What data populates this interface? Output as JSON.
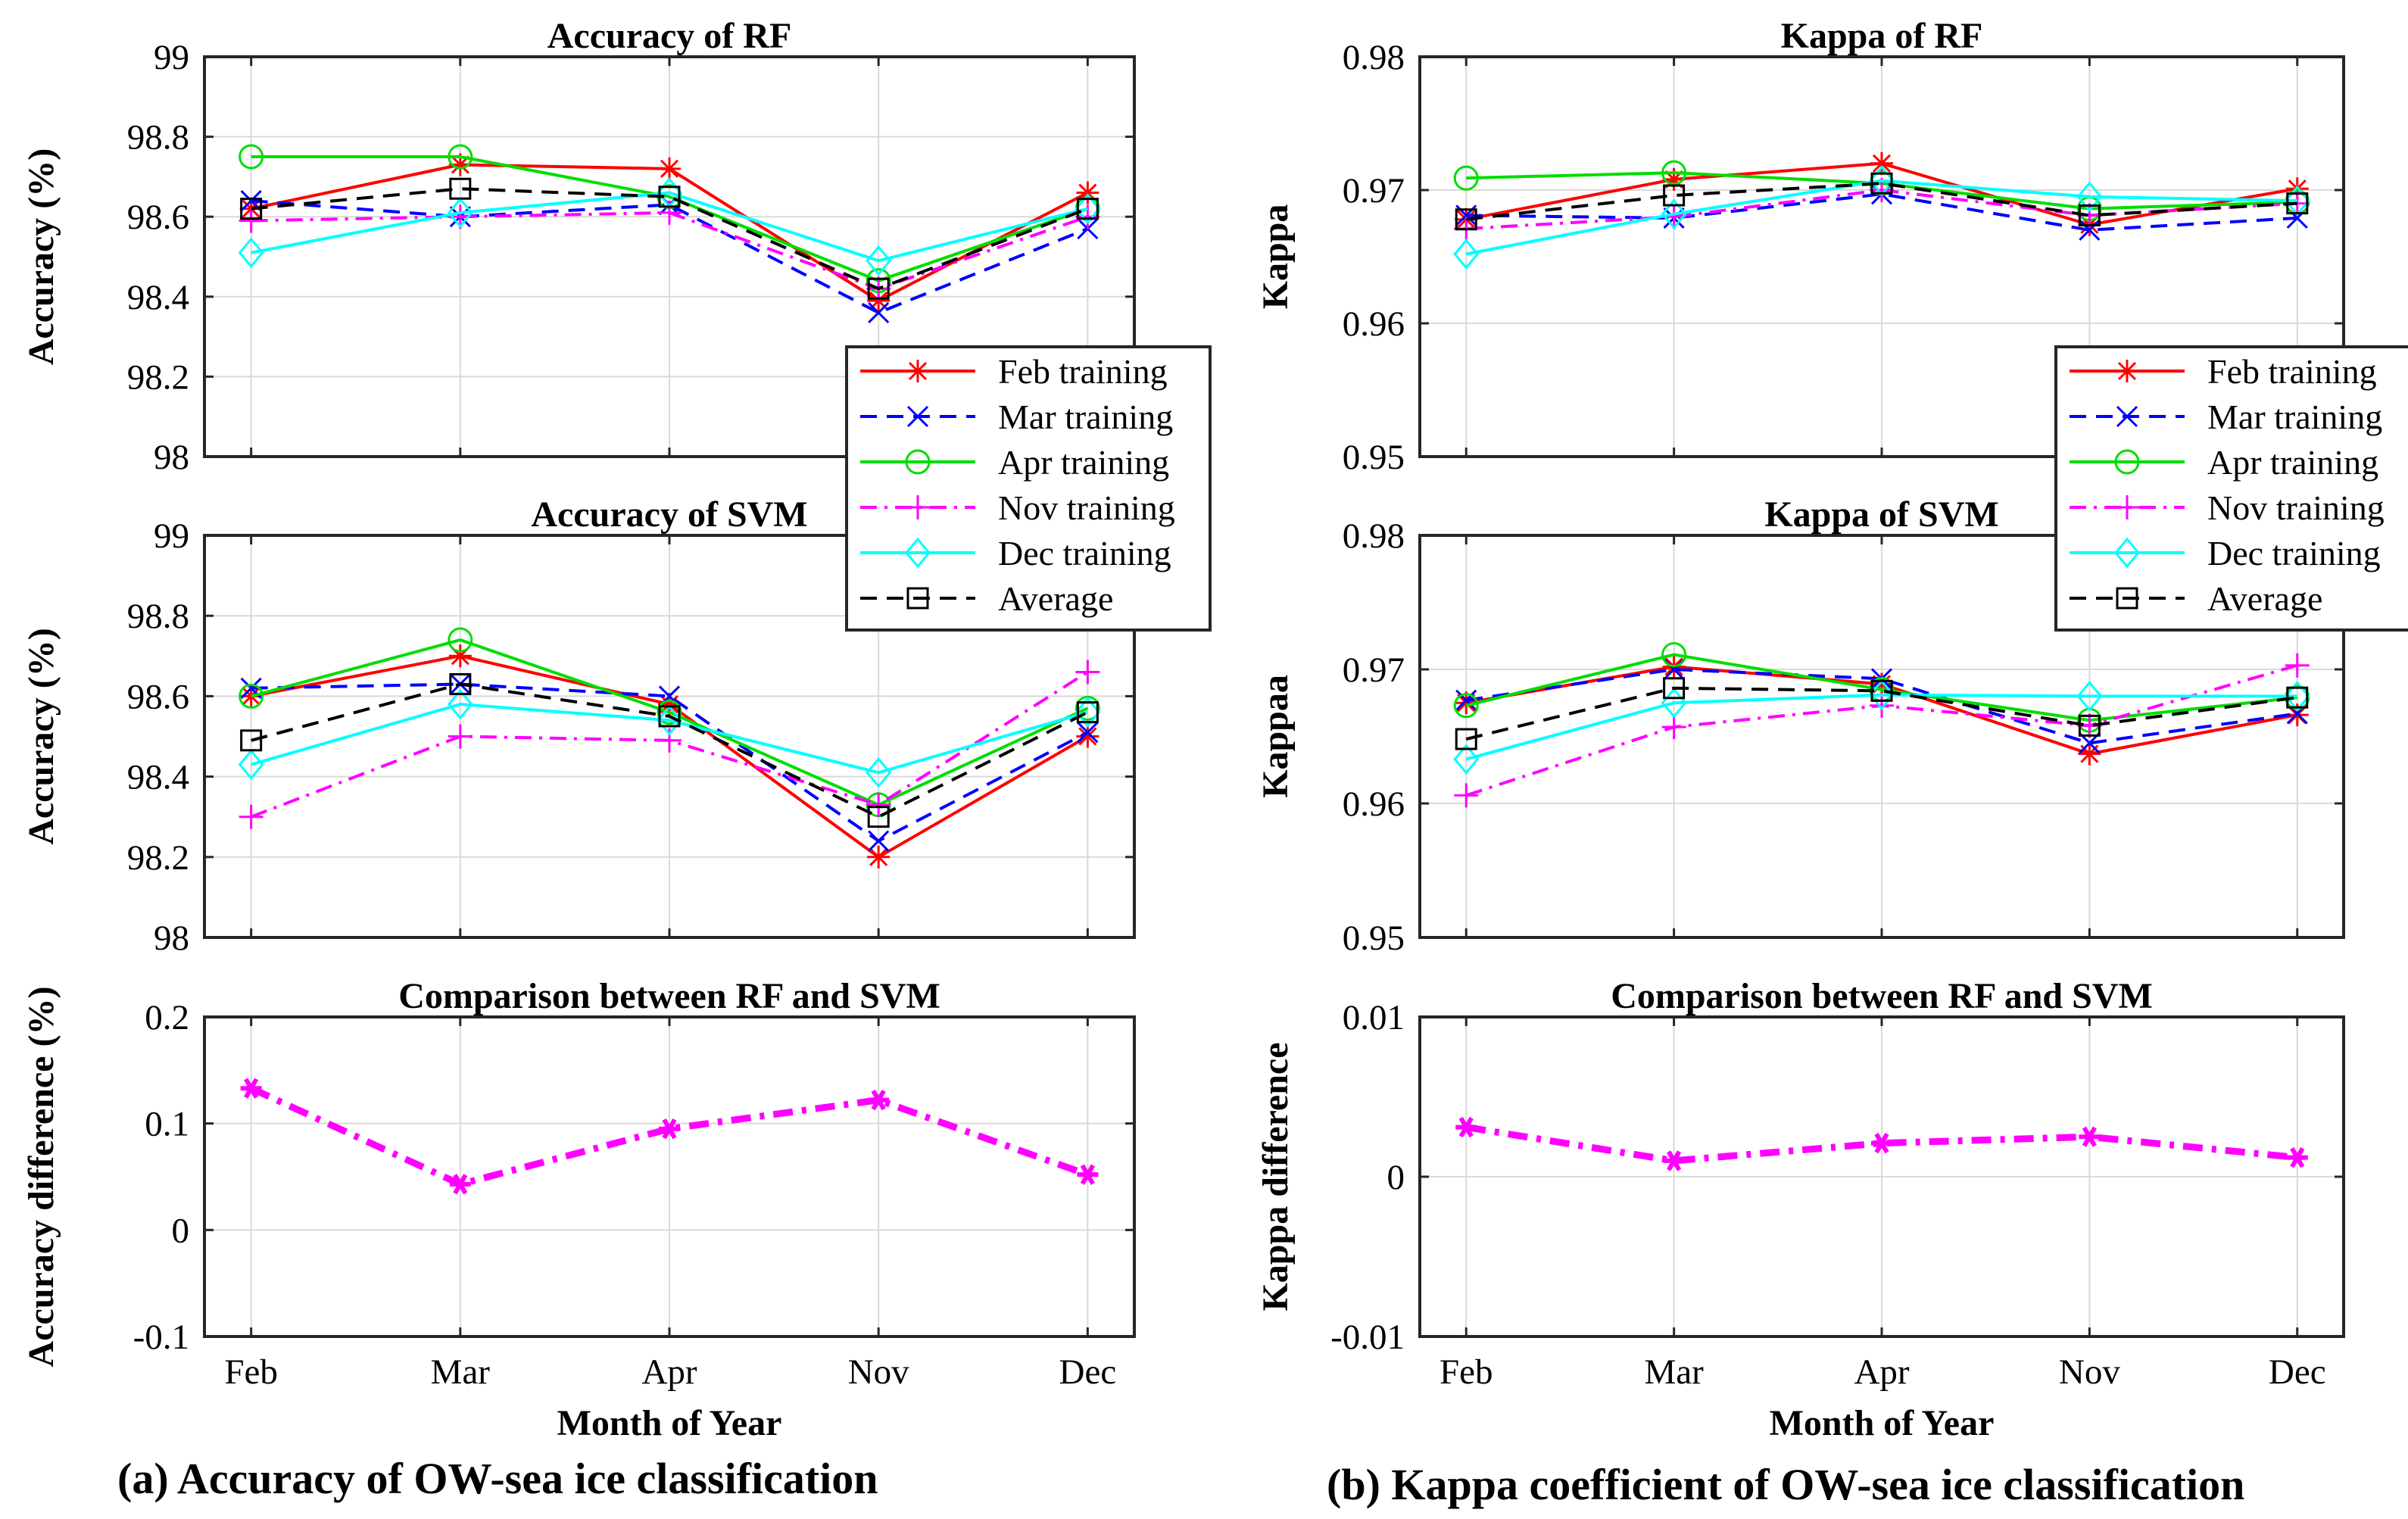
{
  "chart_data": [
    {
      "panel": "a-top",
      "type": "line",
      "title": "Accuracy of RF",
      "ylabel": "Accuracy (%)",
      "categories": [
        "Feb",
        "Mar",
        "Apr",
        "Nov",
        "Dec"
      ],
      "ylim": [
        98,
        99
      ],
      "yticks": [
        98,
        98.2,
        98.4,
        98.6,
        98.8,
        99
      ],
      "ytick_labels": [
        "98",
        "98.2",
        "98.4",
        "98.6",
        "98.8",
        "99"
      ],
      "grid": true,
      "legend": "bottom-right",
      "series": [
        {
          "name": "Feb training",
          "values": [
            98.62,
            98.73,
            98.72,
            98.39,
            98.66
          ]
        },
        {
          "name": "Mar training",
          "values": [
            98.64,
            98.6,
            98.63,
            98.36,
            98.57
          ]
        },
        {
          "name": "Apr training",
          "values": [
            98.75,
            98.75,
            98.65,
            98.44,
            98.62
          ]
        },
        {
          "name": "Nov training",
          "values": [
            98.59,
            98.6,
            98.61,
            98.42,
            98.6
          ]
        },
        {
          "name": "Dec training",
          "values": [
            98.51,
            98.61,
            98.66,
            98.49,
            98.62
          ]
        },
        {
          "name": "Average",
          "values": [
            98.62,
            98.67,
            98.65,
            98.42,
            98.62
          ]
        }
      ]
    },
    {
      "panel": "a-mid",
      "type": "line",
      "title": "Accuracy of SVM",
      "ylabel": "Accuracy (%)",
      "categories": [
        "Feb",
        "Mar",
        "Apr",
        "Nov",
        "Dec"
      ],
      "ylim": [
        98,
        99
      ],
      "yticks": [
        98,
        98.2,
        98.4,
        98.6,
        98.8,
        99
      ],
      "ytick_labels": [
        "98",
        "98.2",
        "98.4",
        "98.6",
        "98.8",
        "99"
      ],
      "grid": true,
      "series": [
        {
          "name": "Feb training",
          "values": [
            98.6,
            98.7,
            98.58,
            98.2,
            98.5
          ]
        },
        {
          "name": "Mar training",
          "values": [
            98.62,
            98.63,
            98.6,
            98.24,
            98.51
          ]
        },
        {
          "name": "Apr training",
          "values": [
            98.6,
            98.74,
            98.56,
            98.33,
            98.57
          ]
        },
        {
          "name": "Nov training",
          "values": [
            98.3,
            98.5,
            98.49,
            98.33,
            98.66
          ]
        },
        {
          "name": "Dec training",
          "values": [
            98.43,
            98.58,
            98.54,
            98.41,
            98.56
          ]
        },
        {
          "name": "Average",
          "values": [
            98.49,
            98.63,
            98.55,
            98.3,
            98.56
          ]
        }
      ]
    },
    {
      "panel": "a-bottom",
      "type": "line",
      "title": "Comparison between RF and SVM",
      "ylabel": "Accuracy difference (%)",
      "xlabel": "Month of Year",
      "categories": [
        "Feb",
        "Mar",
        "Apr",
        "Nov",
        "Dec"
      ],
      "ylim": [
        -0.1,
        0.2
      ],
      "yticks": [
        -0.1,
        0,
        0.1,
        0.2
      ],
      "ytick_labels": [
        "-0.1",
        "0",
        "0.1",
        "0.2"
      ],
      "grid": true,
      "series": [
        {
          "name": "Difference",
          "values": [
            0.133,
            0.043,
            0.095,
            0.122,
            0.052
          ]
        }
      ]
    },
    {
      "panel": "b-top",
      "type": "line",
      "title": "Kappa of RF",
      "ylabel": "Kappa",
      "categories": [
        "Feb",
        "Mar",
        "Apr",
        "Nov",
        "Dec"
      ],
      "ylim": [
        0.95,
        0.98
      ],
      "yticks": [
        0.95,
        0.96,
        0.97,
        0.98
      ],
      "ytick_labels": [
        "0.95",
        "0.96",
        "0.97",
        "0.98"
      ],
      "grid": true,
      "legend": "bottom-right",
      "series": [
        {
          "name": "Feb training",
          "values": [
            0.9678,
            0.9708,
            0.972,
            0.9674,
            0.9701
          ]
        },
        {
          "name": "Mar training",
          "values": [
            0.9681,
            0.9679,
            0.9697,
            0.967,
            0.9679
          ]
        },
        {
          "name": "Apr training",
          "values": [
            0.9709,
            0.9713,
            0.9705,
            0.9686,
            0.9691
          ]
        },
        {
          "name": "Nov training",
          "values": [
            0.9671,
            0.968,
            0.97,
            0.9681,
            0.969
          ]
        },
        {
          "name": "Dec training",
          "values": [
            0.9652,
            0.9682,
            0.9707,
            0.9695,
            0.9692
          ]
        },
        {
          "name": "Average",
          "values": [
            0.9678,
            0.9696,
            0.9705,
            0.9681,
            0.969
          ]
        }
      ]
    },
    {
      "panel": "b-mid",
      "type": "line",
      "title": "Kappa of SVM",
      "ylabel": "Kappaa",
      "categories": [
        "Feb",
        "Mar",
        "Apr",
        "Nov",
        "Dec"
      ],
      "ylim": [
        0.95,
        0.98
      ],
      "yticks": [
        0.95,
        0.96,
        0.97,
        0.98
      ],
      "ytick_labels": [
        "0.95",
        "0.96",
        "0.97",
        "0.98"
      ],
      "grid": true,
      "series": [
        {
          "name": "Feb training",
          "values": [
            0.9675,
            0.9702,
            0.9689,
            0.9637,
            0.9666
          ]
        },
        {
          "name": "Mar training",
          "values": [
            0.9677,
            0.97,
            0.9693,
            0.9645,
            0.9667
          ]
        },
        {
          "name": "Apr training",
          "values": [
            0.9673,
            0.9711,
            0.9685,
            0.9662,
            0.9679
          ]
        },
        {
          "name": "Nov training",
          "values": [
            0.9606,
            0.9657,
            0.9673,
            0.9658,
            0.9703
          ]
        },
        {
          "name": "Dec training",
          "values": [
            0.9633,
            0.9675,
            0.9681,
            0.968,
            0.968
          ]
        },
        {
          "name": "Average",
          "values": [
            0.9648,
            0.9686,
            0.9684,
            0.9658,
            0.9679
          ]
        }
      ]
    },
    {
      "panel": "b-bottom",
      "type": "line",
      "title": "Comparison between RF and SVM",
      "ylabel": "Kappa difference",
      "xlabel": "Month of Year",
      "categories": [
        "Feb",
        "Mar",
        "Apr",
        "Nov",
        "Dec"
      ],
      "ylim": [
        -0.01,
        0.01
      ],
      "yticks": [
        -0.01,
        0,
        0.01
      ],
      "ytick_labels": [
        "-0.01",
        "0",
        "0.01"
      ],
      "grid": true,
      "series": [
        {
          "name": "Difference",
          "values": [
            0.0031,
            0.001,
            0.0021,
            0.0025,
            0.0012
          ]
        }
      ]
    }
  ],
  "styles": {
    "Feb training": {
      "color": "#ff0000",
      "dash": "solid",
      "marker": "asterisk"
    },
    "Mar training": {
      "color": "#0000ff",
      "dash": "dashed",
      "marker": "x"
    },
    "Apr training": {
      "color": "#00dd00",
      "dash": "solid",
      "marker": "circle"
    },
    "Nov training": {
      "color": "#ff00ff",
      "dash": "dashdot",
      "marker": "plus"
    },
    "Dec training": {
      "color": "#00ffff",
      "dash": "solid",
      "marker": "diamond"
    },
    "Average": {
      "color": "#000000",
      "dash": "dashed",
      "marker": "square"
    },
    "Difference": {
      "color": "#ff00ff",
      "dash": "dashthick",
      "marker": "hexstar"
    }
  },
  "captions": {
    "left": "(a) Accuracy of OW-sea ice classification",
    "right": "(b) Kappa coefficient of OW-sea ice classification"
  }
}
